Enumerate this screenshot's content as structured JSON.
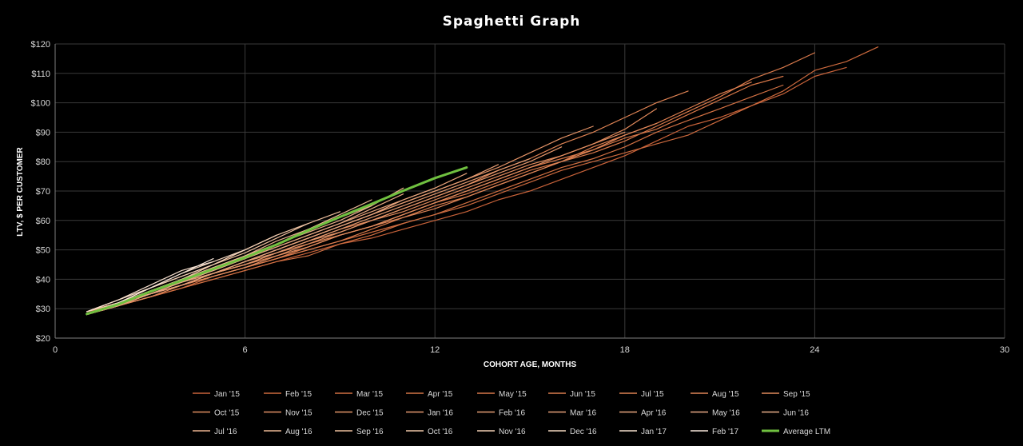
{
  "chart_data": {
    "type": "line",
    "title": "Spaghetti Graph",
    "xlabel": "COHORT AGE, MONTHS",
    "ylabel": "LTV, $  PER CUSTOMER",
    "xlim": [
      0,
      30
    ],
    "ylim": [
      20,
      120
    ],
    "x_ticks": [
      {
        "value": 0,
        "label": "0"
      },
      {
        "value": 6,
        "label": "6"
      },
      {
        "value": 12,
        "label": "12"
      },
      {
        "value": 18,
        "label": "18"
      },
      {
        "value": 24,
        "label": "24"
      },
      {
        "value": 30,
        "label": "30"
      }
    ],
    "y_ticks": [
      {
        "value": 20,
        "label": "$20"
      },
      {
        "value": 30,
        "label": "$30"
      },
      {
        "value": 40,
        "label": "$40"
      },
      {
        "value": 50,
        "label": "$50"
      },
      {
        "value": 60,
        "label": "$60"
      },
      {
        "value": 70,
        "label": "$70"
      },
      {
        "value": 80,
        "label": "$80"
      },
      {
        "value": 90,
        "label": "$90"
      },
      {
        "value": 100,
        "label": "$100"
      },
      {
        "value": 110,
        "label": "$110"
      },
      {
        "value": 120,
        "label": "$120"
      }
    ],
    "grid": true,
    "legend_position": "bottom",
    "series": [
      {
        "name": "Jan '15",
        "color": "#c9633a",
        "width": 1.2,
        "x": [
          1,
          2,
          3,
          4,
          5,
          6,
          7,
          8,
          9,
          10,
          11,
          12,
          13,
          14,
          15,
          16,
          17,
          18,
          19,
          20,
          21,
          22,
          23,
          24,
          25
        ],
        "y": [
          29,
          31,
          34,
          37,
          40,
          43,
          46,
          49,
          52,
          54,
          57,
          60,
          63,
          67,
          70,
          74,
          78,
          82,
          87,
          92,
          95,
          99,
          103,
          109,
          112
        ]
      },
      {
        "name": "Feb '15",
        "color": "#cd6a3e",
        "width": 1.2,
        "x": [
          1,
          2,
          3,
          4,
          5,
          6,
          7,
          8,
          9,
          10,
          11,
          12,
          13,
          14,
          15,
          16,
          17,
          18,
          19,
          20,
          21,
          22,
          23,
          24,
          25,
          26
        ],
        "y": [
          28,
          31,
          34,
          37,
          41,
          44,
          47,
          50,
          53,
          56,
          59,
          62,
          65,
          69,
          73,
          77,
          80,
          83,
          86,
          89,
          94,
          99,
          104,
          111,
          114,
          119
        ]
      },
      {
        "name": "Mar '15",
        "color": "#d17043",
        "width": 1.2,
        "x": [
          1,
          2,
          3,
          4,
          5,
          6,
          7,
          8,
          9,
          10,
          11,
          12,
          13,
          14,
          15,
          16,
          17,
          18,
          19,
          20,
          21,
          22,
          23
        ],
        "y": [
          28,
          31,
          34,
          37,
          40,
          43,
          46,
          48,
          52,
          55,
          59,
          62,
          66,
          70,
          74,
          78,
          81,
          85,
          90,
          94,
          98,
          102,
          106
        ]
      },
      {
        "name": "Apr '15",
        "color": "#d47547",
        "width": 1.2,
        "x": [
          1,
          2,
          3,
          4,
          5,
          6,
          7,
          8,
          9,
          10,
          11,
          12,
          13,
          14,
          15,
          16,
          17,
          18,
          19,
          20,
          21,
          22,
          23
        ],
        "y": [
          29,
          32,
          35,
          38,
          41,
          44,
          47,
          51,
          55,
          58,
          62,
          66,
          70,
          74,
          78,
          81,
          84,
          88,
          91,
          96,
          101,
          106,
          109
        ]
      },
      {
        "name": "May '15",
        "color": "#d8794b",
        "width": 1.2,
        "x": [
          1,
          2,
          3,
          4,
          5,
          6,
          7,
          8,
          9,
          10,
          11,
          12,
          13,
          14,
          15,
          16,
          17,
          18,
          19,
          20,
          21,
          22,
          23,
          24
        ],
        "y": [
          28,
          31,
          35,
          38,
          41,
          44,
          47,
          51,
          55,
          58,
          62,
          66,
          69,
          73,
          77,
          80,
          83,
          87,
          92,
          97,
          102,
          108,
          112,
          117
        ]
      },
      {
        "name": "Jun '15",
        "color": "#da7d4f",
        "width": 1.2,
        "x": [
          1,
          2,
          3,
          4,
          5,
          6,
          7,
          8,
          9,
          10,
          11,
          12,
          13,
          14,
          15,
          16,
          17,
          18,
          19,
          20,
          21,
          22
        ],
        "y": [
          29,
          32,
          35,
          38,
          41,
          44,
          47,
          50,
          53,
          57,
          61,
          65,
          68,
          72,
          76,
          80,
          85,
          89,
          93,
          98,
          103,
          107
        ]
      },
      {
        "name": "Jul '15",
        "color": "#dd8253",
        "width": 1.2,
        "x": [
          1,
          2,
          3,
          4,
          5,
          6,
          7,
          8,
          9,
          10,
          11,
          12,
          13,
          14,
          15,
          16,
          17,
          18,
          19,
          20
        ],
        "y": [
          29,
          32,
          35,
          38,
          42,
          45,
          49,
          53,
          57,
          60,
          64,
          68,
          72,
          77,
          81,
          86,
          90,
          95,
          100,
          104
        ]
      },
      {
        "name": "Aug '15",
        "color": "#df8658",
        "width": 1.2,
        "x": [
          1,
          2,
          3,
          4,
          5,
          6,
          7,
          8,
          9,
          10,
          11,
          12,
          13,
          14,
          15,
          16,
          17,
          18,
          19
        ],
        "y": [
          28,
          32,
          35,
          38,
          42,
          45,
          48,
          52,
          55,
          58,
          61,
          64,
          68,
          72,
          76,
          80,
          84,
          89,
          93
        ]
      },
      {
        "name": "Sep '15",
        "color": "#e18a5c",
        "width": 1.2,
        "x": [
          1,
          2,
          3,
          4,
          5,
          6,
          7,
          8,
          9,
          10,
          11,
          12,
          13,
          14,
          15,
          16,
          17,
          18,
          19
        ],
        "y": [
          29,
          32,
          35,
          38,
          42,
          45,
          49,
          52,
          56,
          60,
          63,
          67,
          71,
          75,
          79,
          82,
          86,
          91,
          98
        ]
      },
      {
        "name": "Oct '15",
        "color": "#e28e61",
        "width": 1.2,
        "x": [
          1,
          2,
          3,
          4,
          5,
          6,
          7,
          8,
          9,
          10,
          11,
          12,
          13,
          14,
          15,
          16,
          17,
          18
        ],
        "y": [
          28,
          31,
          34,
          38,
          41,
          44,
          48,
          51,
          55,
          58,
          62,
          66,
          70,
          74,
          78,
          82,
          86,
          90
        ]
      },
      {
        "name": "Nov '15",
        "color": "#e39266",
        "width": 1.2,
        "x": [
          1,
          2,
          3,
          4,
          5,
          6,
          7,
          8,
          9,
          10,
          11,
          12,
          13,
          14,
          15,
          16,
          17
        ],
        "y": [
          29,
          32,
          36,
          39,
          42,
          46,
          50,
          54,
          58,
          62,
          66,
          70,
          74,
          78,
          83,
          88,
          92
        ]
      },
      {
        "name": "Dec '15",
        "color": "#e4966b",
        "width": 1.2,
        "x": [
          1,
          2,
          3,
          4,
          5,
          6,
          7,
          8,
          9,
          10,
          11,
          12,
          13,
          14,
          15,
          16
        ],
        "y": [
          28,
          31,
          35,
          38,
          42,
          45,
          49,
          53,
          56,
          60,
          64,
          68,
          72,
          76,
          80,
          85
        ]
      },
      {
        "name": "Jan '16",
        "color": "#e59a70",
        "width": 1.2,
        "x": [
          1,
          2,
          3,
          4,
          5,
          6,
          7,
          8,
          9,
          10,
          11,
          12,
          13,
          14,
          15
        ],
        "y": [
          29,
          32,
          35,
          39,
          42,
          46,
          49,
          53,
          57,
          61,
          65,
          69,
          73,
          77,
          81
        ]
      },
      {
        "name": "Feb '16",
        "color": "#e69e75",
        "width": 1.2,
        "x": [
          1,
          2,
          3,
          4,
          5,
          6,
          7,
          8,
          9,
          10,
          11,
          12,
          13,
          14
        ],
        "y": [
          28,
          32,
          35,
          39,
          42,
          46,
          50,
          54,
          58,
          62,
          66,
          70,
          74,
          79
        ]
      },
      {
        "name": "Mar '16",
        "color": "#e7a27a",
        "width": 1.2,
        "x": [
          1,
          2,
          3,
          4,
          5,
          6,
          7,
          8,
          9,
          10,
          11,
          12,
          13
        ],
        "y": [
          29,
          32,
          36,
          39,
          43,
          47,
          51,
          55,
          59,
          63,
          67,
          71,
          76
        ]
      },
      {
        "name": "Apr '16",
        "color": "#e8a67f",
        "width": 1.2,
        "x": [
          1,
          2,
          3,
          4,
          5,
          6,
          7,
          8,
          9,
          10,
          11,
          12
        ],
        "y": [
          28,
          31,
          35,
          38,
          42,
          46,
          50,
          54,
          58,
          62,
          67,
          71
        ]
      },
      {
        "name": "May '16",
        "color": "#e9aa85",
        "width": 1.2,
        "x": [
          1,
          2,
          3,
          4,
          5,
          6,
          7,
          8,
          9,
          10,
          11
        ],
        "y": [
          29,
          32,
          36,
          40,
          43,
          47,
          51,
          55,
          59,
          64,
          69
        ]
      },
      {
        "name": "Jun '16",
        "color": "#eaae8a",
        "width": 1.2,
        "x": [
          1,
          2,
          3,
          4,
          5,
          6,
          7,
          8,
          9,
          10,
          11
        ],
        "y": [
          28,
          32,
          35,
          39,
          43,
          47,
          52,
          56,
          60,
          65,
          71
        ]
      },
      {
        "name": "Jul '16",
        "color": "#ebb390",
        "width": 1.2,
        "x": [
          1,
          2,
          3,
          4,
          5,
          6,
          7,
          8,
          9,
          10
        ],
        "y": [
          29,
          32,
          36,
          40,
          44,
          48,
          53,
          57,
          61,
          65
        ]
      },
      {
        "name": "Aug '16",
        "color": "#ecb996",
        "width": 1.2,
        "x": [
          1,
          2,
          3,
          4,
          5,
          6,
          7,
          8,
          9,
          10
        ],
        "y": [
          28,
          32,
          36,
          40,
          44,
          48,
          52,
          57,
          62,
          67
        ]
      },
      {
        "name": "Sep '16",
        "color": "#eebf9d",
        "width": 1.2,
        "x": [
          1,
          2,
          3,
          4,
          5,
          6,
          7,
          8,
          9
        ],
        "y": [
          29,
          33,
          37,
          41,
          45,
          49,
          54,
          59,
          63
        ]
      },
      {
        "name": "Oct '16",
        "color": "#f0c7a8",
        "width": 1.2,
        "x": [
          1,
          2,
          3,
          4,
          5,
          6,
          7,
          8
        ],
        "y": [
          29,
          32,
          36,
          40,
          45,
          50,
          55,
          59
        ]
      },
      {
        "name": "Nov '16",
        "color": "#f2cfb4",
        "width": 1.2,
        "x": [
          1,
          2,
          3,
          4,
          5,
          6,
          7
        ],
        "y": [
          28,
          32,
          37,
          41,
          45,
          50,
          55
        ]
      },
      {
        "name": "Dec '16",
        "color": "#f4d7c0",
        "width": 1.2,
        "x": [
          1,
          2,
          3,
          4,
          5,
          6
        ],
        "y": [
          29,
          33,
          37,
          42,
          46,
          50
        ]
      },
      {
        "name": "Jan '17",
        "color": "#f6dfcd",
        "width": 1.2,
        "x": [
          1,
          2,
          3,
          4,
          5
        ],
        "y": [
          29,
          33,
          38,
          43,
          46
        ]
      },
      {
        "name": "Feb '17",
        "color": "#f9e8dc",
        "width": 1.2,
        "x": [
          1,
          2,
          3,
          4,
          5
        ],
        "y": [
          28,
          32,
          37,
          42,
          47
        ]
      },
      {
        "name": "Average LTM",
        "color": "#70c040",
        "width": 3,
        "x": [
          1,
          2,
          3,
          4,
          5,
          6,
          7,
          8,
          9,
          10,
          11,
          12,
          13
        ],
        "y": [
          28.2,
          31.5,
          35.8,
          39.6,
          43.5,
          47.4,
          51.8,
          56.6,
          61.2,
          65.6,
          70.1,
          74.4,
          78
        ]
      }
    ]
  }
}
